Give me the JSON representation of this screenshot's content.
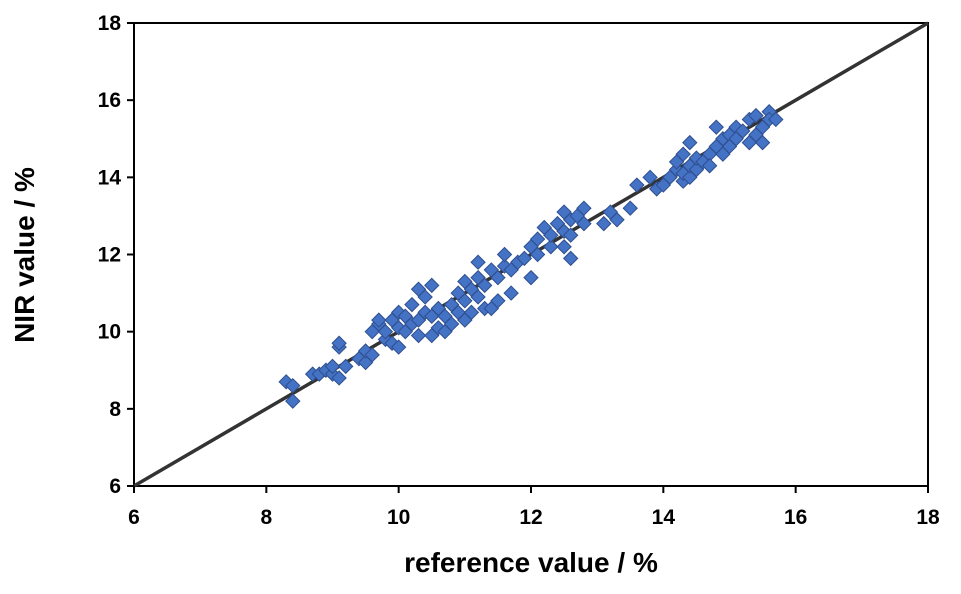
{
  "chart_data": {
    "type": "scatter",
    "title": "",
    "xlabel": "reference value / %",
    "ylabel": "NIR value / %",
    "xlim": [
      6,
      18
    ],
    "ylim": [
      6,
      18
    ],
    "xticks": [
      "6",
      "8",
      "10",
      "12",
      "14",
      "16",
      "18"
    ],
    "yticks": [
      "6",
      "8",
      "10",
      "12",
      "14",
      "16",
      "18"
    ],
    "grid": false,
    "legend": "none",
    "marker": "diamond",
    "colors": {
      "marker_fill": "#4472C4",
      "marker_edge": "#2F4F8F",
      "line": "#333333",
      "axes": "#000000"
    },
    "reference_line": {
      "x": [
        6,
        18
      ],
      "y": [
        6,
        18
      ]
    },
    "series": [
      {
        "points": [
          [
            8.3,
            8.7
          ],
          [
            8.4,
            8.6
          ],
          [
            8.4,
            8.2
          ],
          [
            8.7,
            8.9
          ],
          [
            8.8,
            8.9
          ],
          [
            8.9,
            9.0
          ],
          [
            9.0,
            8.9
          ],
          [
            9.0,
            9.1
          ],
          [
            9.1,
            8.8
          ],
          [
            9.1,
            9.6
          ],
          [
            9.1,
            9.7
          ],
          [
            9.2,
            9.1
          ],
          [
            9.4,
            9.3
          ],
          [
            9.5,
            9.2
          ],
          [
            9.5,
            9.5
          ],
          [
            9.6,
            9.4
          ],
          [
            9.6,
            10.0
          ],
          [
            9.7,
            10.2
          ],
          [
            9.7,
            10.3
          ],
          [
            9.8,
            9.8
          ],
          [
            9.8,
            10.0
          ],
          [
            9.9,
            9.7
          ],
          [
            9.9,
            10.3
          ],
          [
            10.0,
            9.6
          ],
          [
            10.0,
            10.1
          ],
          [
            10.0,
            10.5
          ],
          [
            10.1,
            10.0
          ],
          [
            10.1,
            10.4
          ],
          [
            10.2,
            10.2
          ],
          [
            10.2,
            10.7
          ],
          [
            10.3,
            9.9
          ],
          [
            10.3,
            10.3
          ],
          [
            10.3,
            11.1
          ],
          [
            10.4,
            10.5
          ],
          [
            10.4,
            10.9
          ],
          [
            10.5,
            9.9
          ],
          [
            10.5,
            10.4
          ],
          [
            10.5,
            11.2
          ],
          [
            10.6,
            10.1
          ],
          [
            10.6,
            10.6
          ],
          [
            10.7,
            10.0
          ],
          [
            10.7,
            10.4
          ],
          [
            10.8,
            10.2
          ],
          [
            10.8,
            10.7
          ],
          [
            10.9,
            10.5
          ],
          [
            10.9,
            11.0
          ],
          [
            11.0,
            10.3
          ],
          [
            11.0,
            10.8
          ],
          [
            11.0,
            11.3
          ],
          [
            11.1,
            10.5
          ],
          [
            11.1,
            11.1
          ],
          [
            11.2,
            10.9
          ],
          [
            11.2,
            11.4
          ],
          [
            11.2,
            11.8
          ],
          [
            11.3,
            10.6
          ],
          [
            11.3,
            11.2
          ],
          [
            11.4,
            10.6
          ],
          [
            11.4,
            11.6
          ],
          [
            11.5,
            10.8
          ],
          [
            11.5,
            11.4
          ],
          [
            11.6,
            11.7
          ],
          [
            11.6,
            12.0
          ],
          [
            11.7,
            11.0
          ],
          [
            11.7,
            11.6
          ],
          [
            11.8,
            11.8
          ],
          [
            11.9,
            11.9
          ],
          [
            12.0,
            11.4
          ],
          [
            12.0,
            12.2
          ],
          [
            12.1,
            12.0
          ],
          [
            12.1,
            12.4
          ],
          [
            12.2,
            12.7
          ],
          [
            12.3,
            12.2
          ],
          [
            12.3,
            12.5
          ],
          [
            12.4,
            12.8
          ],
          [
            12.5,
            12.2
          ],
          [
            12.5,
            12.6
          ],
          [
            12.5,
            13.1
          ],
          [
            12.6,
            11.9
          ],
          [
            12.6,
            12.5
          ],
          [
            12.6,
            12.9
          ],
          [
            12.7,
            13.0
          ],
          [
            12.8,
            12.8
          ],
          [
            12.8,
            13.2
          ],
          [
            13.1,
            12.8
          ],
          [
            13.2,
            13.1
          ],
          [
            13.3,
            12.9
          ],
          [
            13.5,
            13.2
          ],
          [
            13.6,
            13.8
          ],
          [
            13.8,
            14.0
          ],
          [
            13.9,
            13.7
          ],
          [
            14.0,
            13.8
          ],
          [
            14.1,
            14.0
          ],
          [
            14.2,
            14.2
          ],
          [
            14.2,
            14.4
          ],
          [
            14.3,
            13.9
          ],
          [
            14.3,
            14.1
          ],
          [
            14.3,
            14.6
          ],
          [
            14.4,
            14.0
          ],
          [
            14.4,
            14.3
          ],
          [
            14.4,
            14.9
          ],
          [
            14.5,
            14.2
          ],
          [
            14.5,
            14.5
          ],
          [
            14.6,
            14.4
          ],
          [
            14.7,
            14.6
          ],
          [
            14.7,
            14.3
          ],
          [
            14.8,
            14.8
          ],
          [
            14.8,
            15.3
          ],
          [
            14.9,
            15.0
          ],
          [
            14.9,
            14.6
          ],
          [
            15.0,
            15.1
          ],
          [
            15.0,
            14.8
          ],
          [
            15.1,
            15.3
          ],
          [
            15.1,
            15.0
          ],
          [
            15.2,
            15.2
          ],
          [
            15.3,
            14.9
          ],
          [
            15.3,
            15.5
          ],
          [
            15.4,
            15.6
          ],
          [
            15.4,
            15.1
          ],
          [
            15.5,
            14.9
          ],
          [
            15.5,
            15.3
          ],
          [
            15.6,
            15.7
          ],
          [
            15.6,
            15.5
          ],
          [
            15.7,
            15.5
          ]
        ]
      }
    ]
  }
}
